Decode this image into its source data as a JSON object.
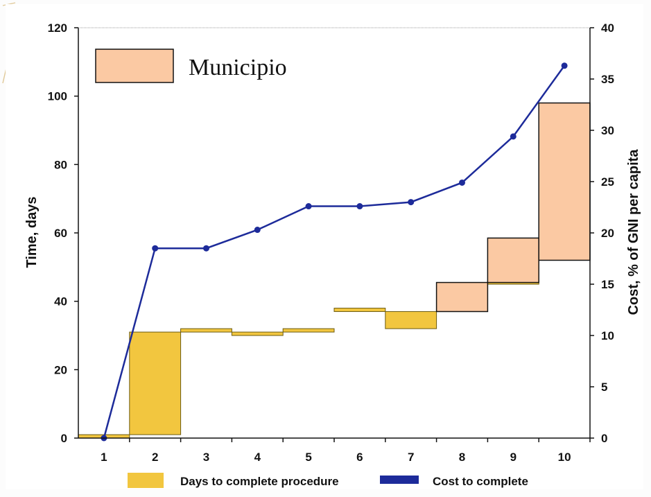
{
  "chart_data": {
    "type": "bar",
    "subtype": "waterfall with cumulative cost line",
    "categories": [
      "1",
      "2",
      "3",
      "4",
      "5",
      "6",
      "7",
      "8",
      "9",
      "10"
    ],
    "time_axis": {
      "label": "Time, days",
      "ylim": [
        0,
        120
      ],
      "ticks": [
        "0",
        "20",
        "40",
        "60",
        "80",
        "100",
        "120"
      ]
    },
    "cost_axis": {
      "label": "Cost, % of GNI per capita",
      "ylim": [
        0,
        40
      ],
      "ticks": [
        "0",
        "5",
        "10",
        "15",
        "20",
        "25",
        "30",
        "35",
        "40"
      ]
    },
    "series": [
      {
        "name": "Days to complete procedure",
        "type": "floating-bar",
        "axis": "time",
        "ranges": [
          [
            0,
            1
          ],
          [
            1,
            31
          ],
          [
            31,
            32
          ],
          [
            30,
            31
          ],
          [
            31,
            32
          ],
          [
            37,
            38
          ],
          [
            32,
            37
          ],
          [
            37,
            45
          ],
          [
            45,
            46
          ],
          [
            52,
            98
          ]
        ]
      },
      {
        "name": "Cost to complete",
        "type": "line",
        "axis": "cost",
        "values": [
          0,
          18.5,
          18.5,
          20.3,
          22.6,
          22.6,
          23,
          24.9,
          29.4,
          36.3
        ]
      }
    ],
    "annotation_boxes": [
      {
        "category": "8",
        "range": [
          37,
          45.5
        ]
      },
      {
        "category": "9",
        "range": [
          45.5,
          58.5
        ]
      },
      {
        "category": "10",
        "range": [
          52,
          98
        ]
      }
    ],
    "annotation_legend": {
      "label": "Municipio"
    },
    "legend": {
      "position": "bottom",
      "items": [
        "Days to complete procedure",
        "Cost to complete"
      ]
    },
    "grid": {
      "top_line": true
    },
    "colors": {
      "days_bar": "#f2c63f",
      "days_bar_stroke": "#6b5a10",
      "cost_line": "#1d2b9a",
      "municipio_box": "#fbc9a3",
      "municipio_stroke": "#111111",
      "axis": "#111111",
      "page_background": "#fcfcfc"
    }
  }
}
